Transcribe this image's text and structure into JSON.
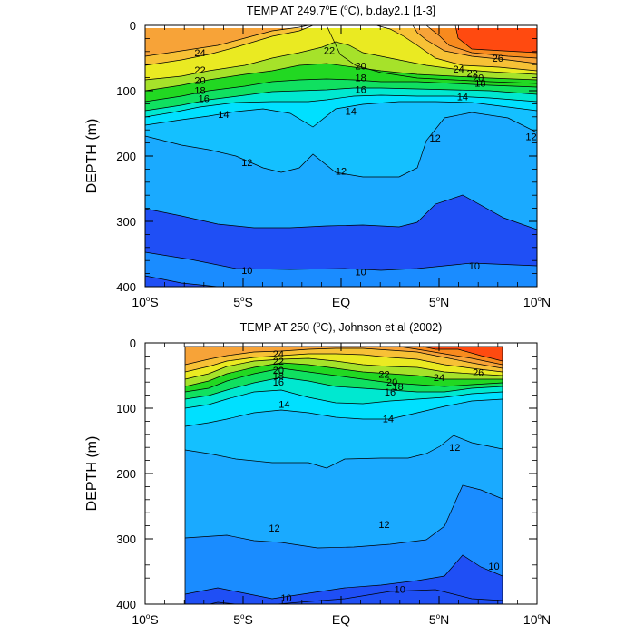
{
  "chart_data": [
    {
      "type": "contour",
      "title": "TEMP AT 249.7°E (°C), b.day2.1 [1-3]",
      "title_parts": {
        "main": "TEMP AT 249.7",
        "sup": "o",
        "rest": "E (",
        "sup2": "o",
        "end": "C), b.day2.1 [1-3]"
      },
      "ylabel": "DEPTH (m)",
      "xlim": [
        -10,
        10
      ],
      "ylim": [
        400,
        0
      ],
      "x_ticks": [
        {
          "v": -10,
          "label": "10",
          "suf": "S"
        },
        {
          "v": -5,
          "label": "5",
          "suf": "S"
        },
        {
          "v": 0,
          "label": "EQ",
          "suf": ""
        },
        {
          "v": 5,
          "label": "5",
          "suf": "N"
        },
        {
          "v": 10,
          "label": "10",
          "suf": "N"
        }
      ],
      "y_ticks": [
        "0",
        "100",
        "200",
        "300",
        "400"
      ],
      "data_x_range": [
        -10,
        10
      ],
      "contour_labels": [
        {
          "text": "24",
          "x": -7.2,
          "y": 42
        },
        {
          "text": "22",
          "x": -7.2,
          "y": 68
        },
        {
          "text": "20",
          "x": -7.2,
          "y": 84
        },
        {
          "text": "18",
          "x": -7.2,
          "y": 99
        },
        {
          "text": "16",
          "x": -7.0,
          "y": 112
        },
        {
          "text": "14",
          "x": -6.0,
          "y": 136
        },
        {
          "text": "22",
          "x": -0.6,
          "y": 38
        },
        {
          "text": "20",
          "x": 1.0,
          "y": 62
        },
        {
          "text": "18",
          "x": 1.0,
          "y": 80
        },
        {
          "text": "16",
          "x": 1.0,
          "y": 98
        },
        {
          "text": "14",
          "x": 0.5,
          "y": 131
        },
        {
          "text": "26",
          "x": 8.0,
          "y": 50
        },
        {
          "text": "24",
          "x": 6.0,
          "y": 67
        },
        {
          "text": "22",
          "x": 6.7,
          "y": 73
        },
        {
          "text": "20",
          "x": 7.0,
          "y": 80
        },
        {
          "text": "18",
          "x": 7.1,
          "y": 88
        },
        {
          "text": "14",
          "x": 6.2,
          "y": 109
        },
        {
          "text": "12",
          "x": -4.8,
          "y": 210
        },
        {
          "text": "12",
          "x": 0.0,
          "y": 223
        },
        {
          "text": "12",
          "x": 4.8,
          "y": 172
        },
        {
          "text": "12",
          "x": 9.7,
          "y": 170
        },
        {
          "text": "10",
          "x": -4.8,
          "y": 375
        },
        {
          "text": "10",
          "x": 1.0,
          "y": 377
        },
        {
          "text": "10",
          "x": 6.8,
          "y": 368
        }
      ]
    },
    {
      "type": "contour",
      "title": "TEMP AT 250 (°C), Johnson et al (2002)",
      "title_parts": {
        "main": "TEMP AT 250 (",
        "sup": "o",
        "rest": "C), Johnson et al (2002)",
        "sup2": "",
        "end": ""
      },
      "ylabel": "DEPTH (m)",
      "xlim": [
        -10,
        10
      ],
      "ylim": [
        400,
        0
      ],
      "x_ticks": [
        {
          "v": -10,
          "label": "10",
          "suf": "S"
        },
        {
          "v": -5,
          "label": "5",
          "suf": "S"
        },
        {
          "v": 0,
          "label": "EQ",
          "suf": ""
        },
        {
          "v": 5,
          "label": "5",
          "suf": "N"
        },
        {
          "v": 10,
          "label": "10",
          "suf": "N"
        }
      ],
      "y_ticks": [
        "0",
        "100",
        "200",
        "300",
        "400"
      ],
      "data_x_range": [
        -8,
        8.2
      ],
      "contour_labels": [
        {
          "text": "24",
          "x": -3.2,
          "y": 17
        },
        {
          "text": "22",
          "x": -3.2,
          "y": 28
        },
        {
          "text": "20",
          "x": -3.2,
          "y": 42
        },
        {
          "text": "18",
          "x": -3.2,
          "y": 50
        },
        {
          "text": "16",
          "x": -3.2,
          "y": 60
        },
        {
          "text": "22",
          "x": 2.2,
          "y": 48
        },
        {
          "text": "20",
          "x": 2.6,
          "y": 60
        },
        {
          "text": "18",
          "x": 2.9,
          "y": 67
        },
        {
          "text": "16",
          "x": 2.5,
          "y": 75
        },
        {
          "text": "24",
          "x": 5.0,
          "y": 53
        },
        {
          "text": "26",
          "x": 7.0,
          "y": 45
        },
        {
          "text": "14",
          "x": -2.9,
          "y": 94
        },
        {
          "text": "14",
          "x": 2.4,
          "y": 116
        },
        {
          "text": "12",
          "x": 5.8,
          "y": 160
        },
        {
          "text": "12",
          "x": -3.4,
          "y": 283
        },
        {
          "text": "12",
          "x": 2.2,
          "y": 278
        },
        {
          "text": "10",
          "x": -2.8,
          "y": 390
        },
        {
          "text": "10",
          "x": 3.0,
          "y": 377
        },
        {
          "text": "10",
          "x": 7.8,
          "y": 342
        }
      ]
    }
  ]
}
